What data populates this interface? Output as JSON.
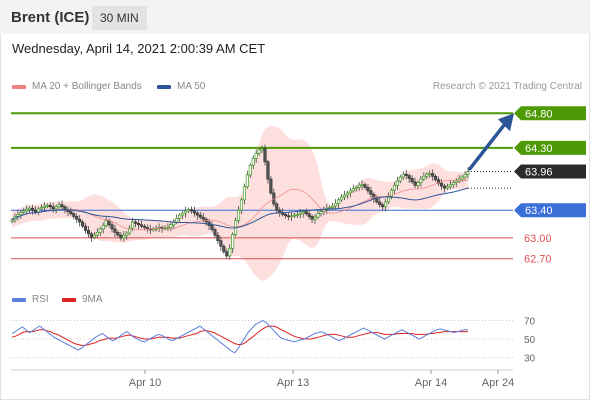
{
  "header": {
    "instrument": "Brent (ICE)",
    "period": "30 MIN"
  },
  "datetime": "Wednesday, April 14, 2021 2:00:39 AM CET",
  "legend": {
    "ma20": {
      "label": "MA 20 + Bollinger Bands",
      "color": "#f08080"
    },
    "ma50": {
      "label": "MA 50",
      "color": "#2a5597"
    }
  },
  "credit": "Research © 2021 Trading Central",
  "rsi_legend": {
    "rsi": {
      "label": "RSI",
      "color": "#5b7fdb"
    },
    "ma9": {
      "label": "9MA",
      "color": "#dd2222"
    }
  },
  "chart_data": [
    {
      "type": "line",
      "title": "",
      "x_tick_labels": [
        "Apr 10",
        "Apr 13",
        "Apr 14",
        "Apr 24"
      ],
      "ylim": [
        62.45,
        65.05
      ],
      "current_price": "63.96",
      "levels": [
        {
          "label": "64.80",
          "value": 64.8,
          "role": "resistance",
          "color": "#4e9a06"
        },
        {
          "label": "64.30",
          "value": 64.3,
          "role": "resistance",
          "color": "#4e9a06"
        },
        {
          "label": "63.40",
          "value": 63.4,
          "role": "pivot",
          "color": "#3a6fd8"
        },
        {
          "label": "63.00",
          "value": 63.0,
          "role": "support",
          "color": "#e05050"
        },
        {
          "label": "62.70",
          "value": 62.7,
          "role": "support",
          "color": "#e05050"
        }
      ],
      "series": [
        {
          "name": "Close",
          "values": [
            63.26,
            63.31,
            63.34,
            63.37,
            63.39,
            63.41,
            63.43,
            63.4,
            63.37,
            63.42,
            63.44,
            63.46,
            63.47,
            63.45,
            63.42,
            63.45,
            63.48,
            63.45,
            63.41,
            63.38,
            63.35,
            63.31,
            63.27,
            63.23,
            63.17,
            63.11,
            63.06,
            63.01,
            63.04,
            63.08,
            63.13,
            63.18,
            63.25,
            63.19,
            63.13,
            63.08,
            63.04,
            63.0,
            63.04,
            63.07,
            63.14,
            63.23,
            63.21,
            63.19,
            63.17,
            63.15,
            63.13,
            63.12,
            63.13,
            63.14,
            63.15,
            63.14,
            63.14,
            63.15,
            63.19,
            63.23,
            63.28,
            63.33,
            63.36,
            63.39,
            63.41,
            63.39,
            63.36,
            63.33,
            63.3,
            63.27,
            63.23,
            63.18,
            63.12,
            63.04,
            62.96,
            62.88,
            62.8,
            62.74,
            62.85,
            63.05,
            63.25,
            63.4,
            63.55,
            63.74,
            63.91,
            64.05,
            64.15,
            64.22,
            64.27,
            64.29,
            64.1,
            63.85,
            63.65,
            63.49,
            63.4,
            63.37,
            63.34,
            63.32,
            63.31,
            63.32,
            63.33,
            63.34,
            63.36,
            63.38,
            63.35,
            63.31,
            63.27,
            63.3,
            63.35,
            63.38,
            63.41,
            63.43,
            63.44,
            63.46,
            63.5,
            63.55,
            63.59,
            63.62,
            63.65,
            63.68,
            63.71,
            63.73,
            63.76,
            63.77,
            63.73,
            63.68,
            63.63,
            63.57,
            63.52,
            63.48,
            63.45,
            63.52,
            63.6,
            63.69,
            63.76,
            63.82,
            63.88,
            63.92,
            63.9,
            63.86,
            63.81,
            63.76,
            63.8,
            63.85,
            63.89,
            63.92,
            63.93,
            63.89,
            63.84,
            63.79,
            63.75,
            63.72,
            63.74,
            63.77,
            63.8,
            63.82,
            63.85,
            63.88,
            63.92,
            63.96
          ]
        }
      ]
    },
    {
      "type": "line",
      "title": "",
      "ylim": [
        25,
        75
      ],
      "yticks": [
        {
          "label": "70",
          "value": 70
        },
        {
          "label": "50",
          "value": 50
        },
        {
          "label": "30",
          "value": 30
        }
      ],
      "series": [
        {
          "name": "RSI",
          "values": [
            56,
            58,
            61,
            63,
            60,
            57,
            59,
            62,
            64,
            61,
            58,
            55,
            52,
            50,
            48,
            46,
            44,
            42,
            40,
            38,
            40,
            43,
            46,
            49,
            52,
            54,
            56,
            53,
            50,
            48,
            50,
            53,
            56,
            58,
            55,
            52,
            50,
            48,
            47,
            49,
            51,
            53,
            55,
            54,
            52,
            50,
            48,
            50,
            52,
            54,
            56,
            58,
            60,
            62,
            64,
            61,
            58,
            55,
            52,
            49,
            46,
            43,
            40,
            37,
            35,
            40,
            46,
            52,
            58,
            62,
            66,
            68,
            70,
            68,
            64,
            60,
            56,
            52,
            50,
            49,
            48,
            47,
            48,
            49,
            50,
            52,
            54,
            56,
            57,
            58,
            56,
            54,
            52,
            50,
            48,
            50,
            52,
            54,
            56,
            58,
            60,
            62,
            60,
            58,
            56,
            54,
            52,
            50,
            52,
            54,
            56,
            58,
            60,
            58,
            56,
            54,
            52,
            50,
            52,
            54,
            56,
            58,
            60,
            61,
            60,
            59,
            58,
            57,
            58,
            59,
            60,
            60
          ]
        },
        {
          "name": "9MA",
          "values": [
            52,
            53,
            55,
            57,
            58,
            58,
            58,
            59,
            60,
            60,
            59,
            58,
            56,
            55,
            53,
            51,
            49,
            47,
            45,
            44,
            43,
            43,
            44,
            45,
            46,
            48,
            49,
            50,
            51,
            51,
            51,
            52,
            53,
            54,
            54,
            53,
            52,
            51,
            50,
            50,
            50,
            51,
            52,
            52,
            52,
            52,
            51,
            51,
            51,
            52,
            53,
            54,
            55,
            56,
            58,
            59,
            59,
            58,
            57,
            55,
            53,
            51,
            49,
            47,
            45,
            44,
            44,
            46,
            49,
            52,
            55,
            58,
            61,
            63,
            64,
            64,
            63,
            61,
            59,
            57,
            55,
            53,
            52,
            51,
            50,
            50,
            50,
            51,
            52,
            53,
            54,
            55,
            55,
            55,
            54,
            53,
            52,
            52,
            52,
            53,
            54,
            55,
            56,
            57,
            57,
            57,
            56,
            55,
            55,
            55,
            55,
            56,
            56,
            56,
            56,
            56,
            55,
            55,
            55,
            55,
            56,
            56,
            57,
            57,
            58,
            58,
            58,
            58,
            58,
            58,
            58,
            58
          ]
        }
      ]
    }
  ]
}
